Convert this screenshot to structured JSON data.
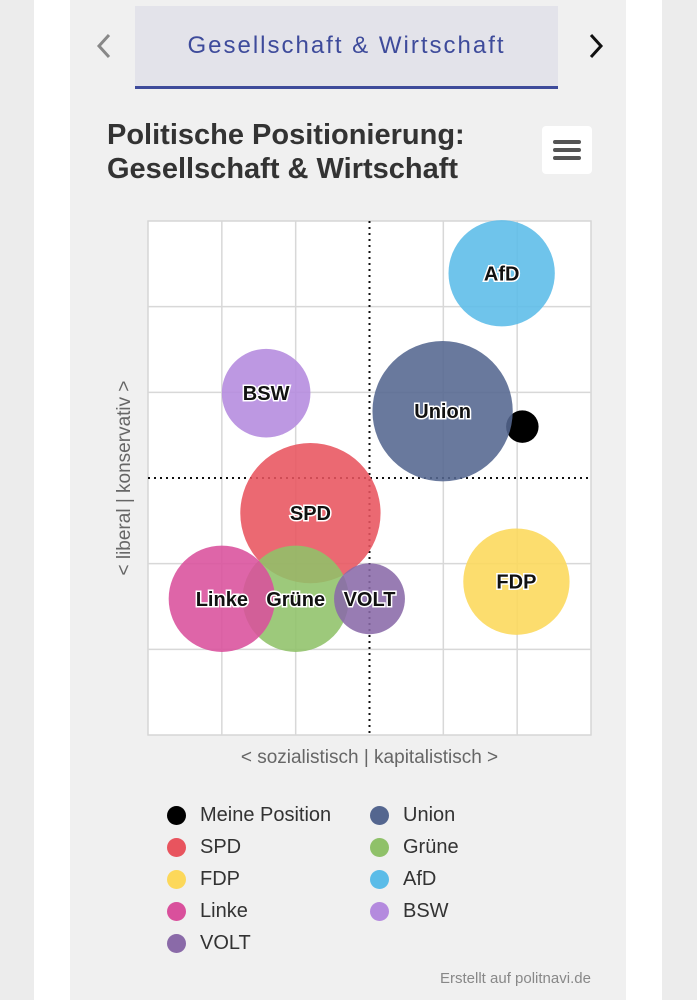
{
  "nav": {
    "tab_label": "Gesellschaft & Wirtschaft"
  },
  "chart": {
    "title_line1": "Politische Positionierung:",
    "title_line2": "Gesellschaft & Wirtschaft"
  },
  "credit": "Erstellt auf politnavi.de",
  "chart_data": {
    "type": "scatter",
    "title": "Politische Positionierung: Gesellschaft & Wirtschaft",
    "xlabel": "< sozialistisch | kapitalistisch >",
    "ylabel": "< liberal | konservativ >",
    "xlim": [
      -3,
      3
    ],
    "ylim": [
      -3,
      3
    ],
    "grid": true,
    "legend": "bottom",
    "series": [
      {
        "name": "Meine Position",
        "color": "#000000",
        "x": 2.07,
        "y": 0.6,
        "size": 0.22,
        "label": ""
      },
      {
        "name": "Union",
        "color": "#54668f",
        "x": 0.99,
        "y": 0.78,
        "size": 0.95,
        "label": "Union"
      },
      {
        "name": "SPD",
        "color": "#e8545e",
        "x": -0.8,
        "y": -0.41,
        "size": 0.95,
        "label": "SPD"
      },
      {
        "name": "Grüne",
        "color": "#8fc169",
        "x": -1.0,
        "y": -1.41,
        "size": 0.72,
        "label": "Grüne"
      },
      {
        "name": "FDP",
        "color": "#fcd85a",
        "x": 1.99,
        "y": -1.21,
        "size": 0.72,
        "label": "FDP"
      },
      {
        "name": "AfD",
        "color": "#5bbce8",
        "x": 1.79,
        "y": 2.39,
        "size": 0.72,
        "label": "AfD"
      },
      {
        "name": "Linke",
        "color": "#d9509c",
        "x": -2.0,
        "y": -1.41,
        "size": 0.72,
        "label": "Linke"
      },
      {
        "name": "BSW",
        "color": "#b48ade",
        "x": -1.4,
        "y": 0.99,
        "size": 0.6,
        "label": "BSW"
      },
      {
        "name": "VOLT",
        "color": "#8a6aa8",
        "x": 0.0,
        "y": -1.41,
        "size": 0.48,
        "label": "VOLT"
      }
    ]
  }
}
